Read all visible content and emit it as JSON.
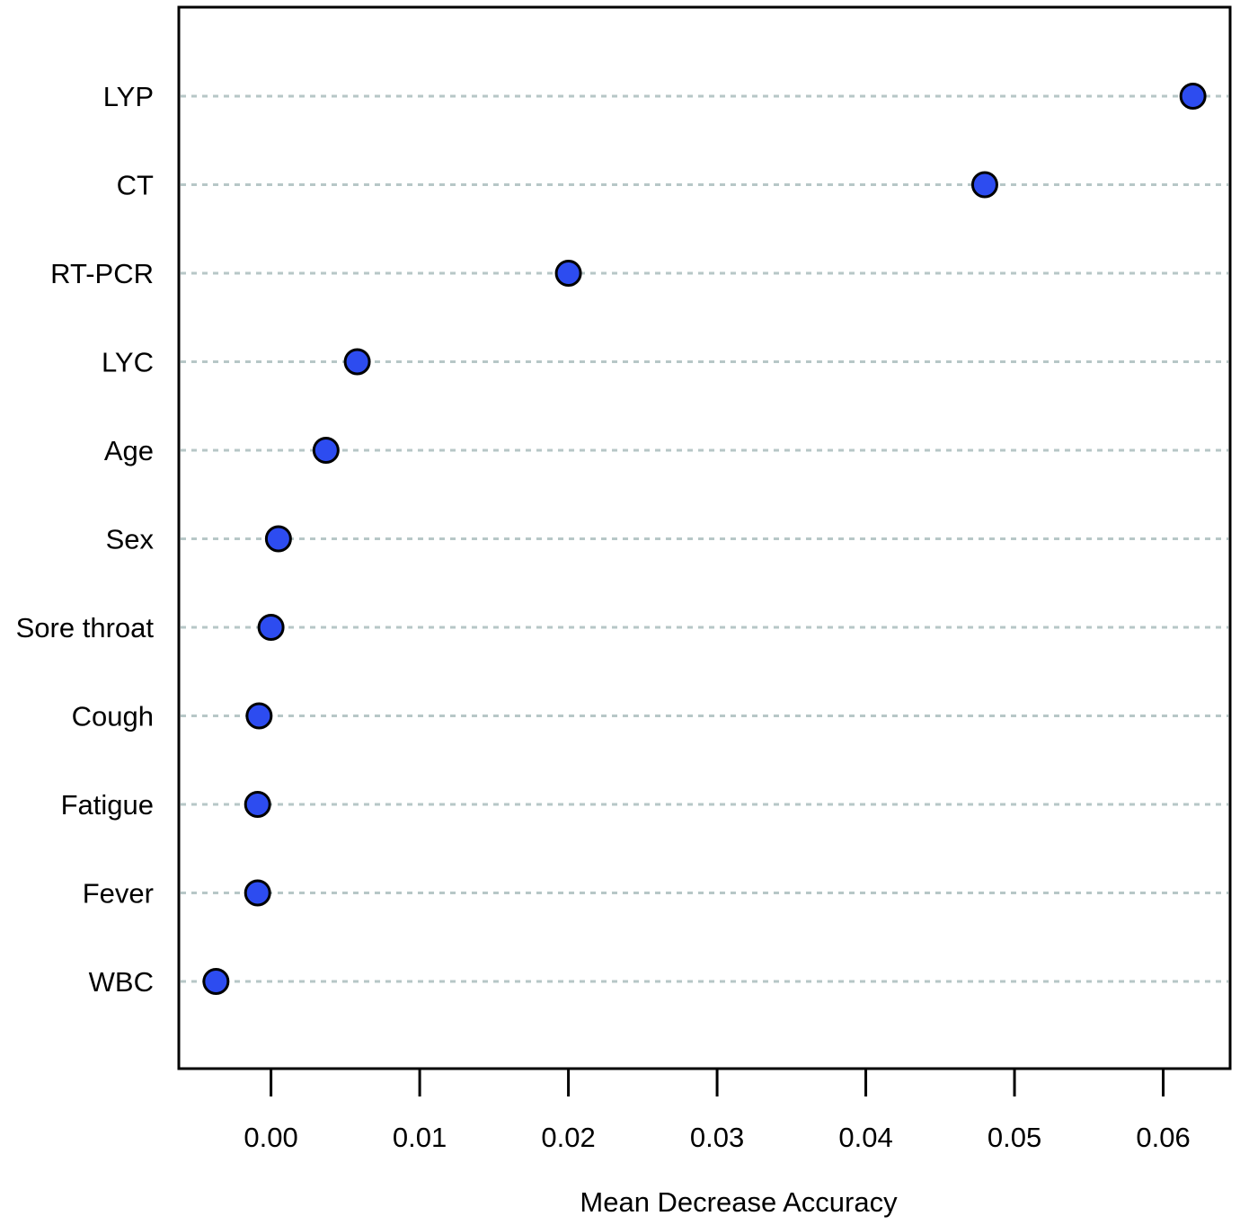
{
  "chart_data": {
    "type": "scatter",
    "title": "",
    "xlabel": "Mean Decrease Accuracy",
    "ylabel": "",
    "xlim": [
      -0.0062,
      0.0645
    ],
    "xticks": [
      "0.00",
      "0.01",
      "0.02",
      "0.03",
      "0.04",
      "0.05",
      "0.06"
    ],
    "xtick_values": [
      0,
      0.01,
      0.02,
      0.03,
      0.04,
      0.05,
      0.06
    ],
    "categories": [
      "LYP",
      "CT",
      "RT-PCR",
      "LYC",
      "Age",
      "Sex",
      "Sore throat",
      "Cough",
      "Fatigue",
      "Fever",
      "WBC"
    ],
    "values": [
      0.062,
      0.048,
      0.02,
      0.0058,
      0.0037,
      0.0005,
      0.0,
      -0.0008,
      -0.0009,
      -0.0009,
      -0.0037
    ],
    "grid": "horizontal dotted guide lines per variable",
    "legend": "none",
    "colors": {
      "point_fill": "#2d4cf0",
      "point_stroke": "#000000",
      "guide_line": "#b7c7c7",
      "axis": "#000000"
    }
  }
}
